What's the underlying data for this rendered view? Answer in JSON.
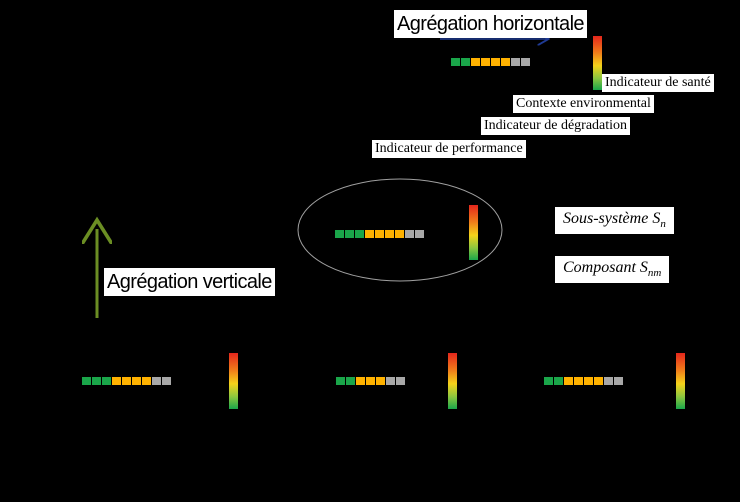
{
  "labels": {
    "horizontal_aggregation": "Agrégation horizontale",
    "vertical_aggregation": "Agrégation verticale",
    "health_indicator": "Indicateur de santé",
    "environmental_context": "Contexte environmental",
    "degradation_indicator": "Indicateur de dégradation",
    "performance_indicator": "Indicateur de performance",
    "subsystem_prefix": "Sous-système S",
    "subsystem_sub": "n",
    "component_prefix": "Composant S",
    "component_sub": "nm"
  },
  "colors": {
    "background": "#000000",
    "green": "#1aa64a",
    "amber": "#ffb200",
    "grey": "#a8a8a8",
    "arrow_blue": "#1f3a93",
    "arrow_olive": "#6b8e23",
    "gauge_top": "#e4261c",
    "gauge_bottom": "#1aa64a"
  },
  "indicator_groups": [
    {
      "id": "system",
      "squares": [
        "green",
        "green",
        "amber",
        "amber",
        "amber",
        "amber",
        "grey",
        "grey"
      ]
    },
    {
      "id": "subsystem",
      "squares": [
        "green",
        "green",
        "green",
        "amber",
        "amber",
        "amber",
        "amber",
        "grey",
        "grey"
      ]
    },
    {
      "id": "component-1",
      "squares": [
        "green",
        "green",
        "green",
        "amber",
        "amber",
        "amber",
        "amber",
        "grey",
        "grey"
      ]
    },
    {
      "id": "component-2",
      "squares": [
        "green",
        "green",
        "amber",
        "amber",
        "amber",
        "grey",
        "grey"
      ]
    },
    {
      "id": "component-3",
      "squares": [
        "green",
        "green",
        "amber",
        "amber",
        "amber",
        "amber",
        "grey",
        "grey"
      ]
    }
  ]
}
